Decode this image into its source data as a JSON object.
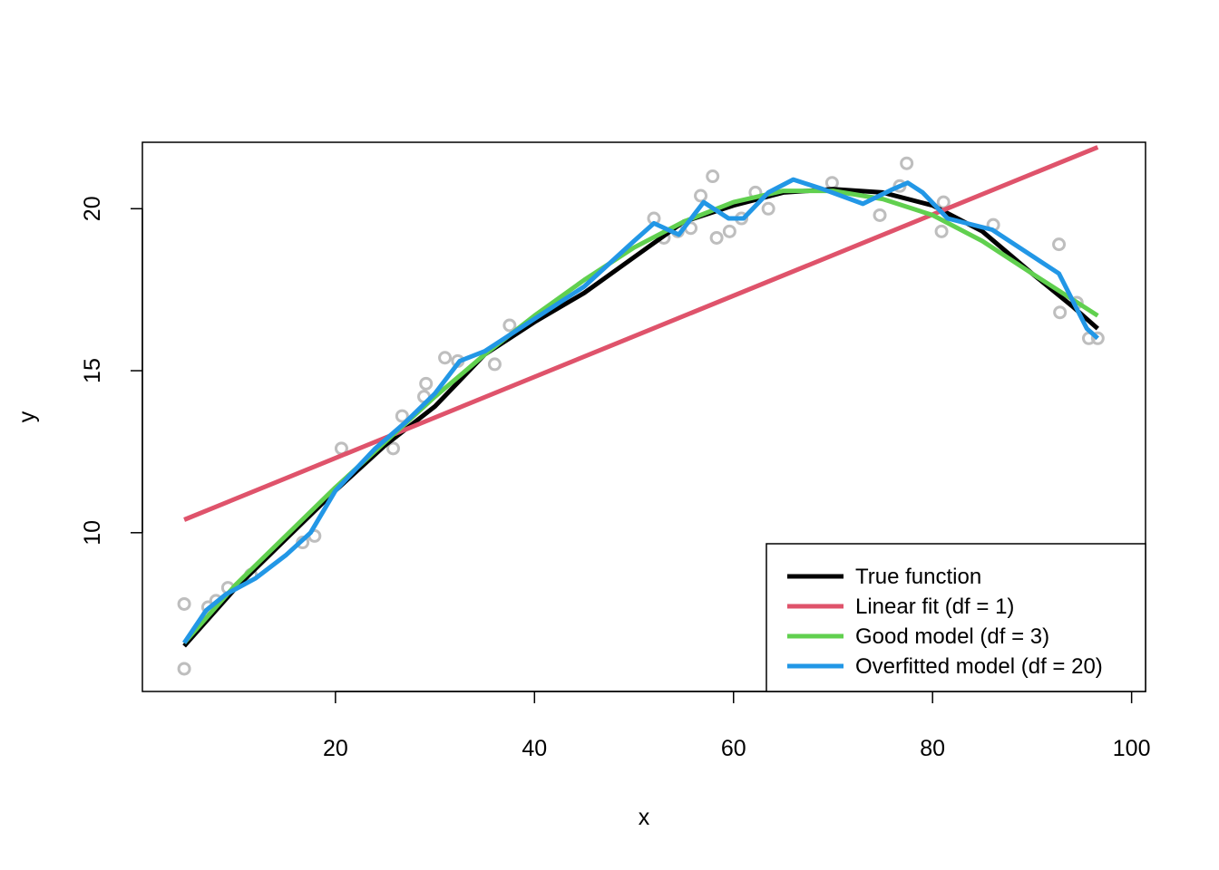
{
  "chart_data": {
    "type": "scatter",
    "title": "",
    "xlabel": "x",
    "ylabel": "y",
    "xlim": [
      0.6,
      101.4
    ],
    "ylim": [
      5.1,
      22.05
    ],
    "x_ticks": [
      20,
      40,
      60,
      80,
      100
    ],
    "y_ticks": [
      10,
      15,
      20
    ],
    "grid": false,
    "legend_position": "bottom-right",
    "points_color": "#bebebe",
    "points": [
      {
        "x": 4.8,
        "y": 7.8
      },
      {
        "x": 4.8,
        "y": 5.8
      },
      {
        "x": 7.2,
        "y": 7.7
      },
      {
        "x": 8.0,
        "y": 7.9
      },
      {
        "x": 9.2,
        "y": 8.3
      },
      {
        "x": 11.5,
        "y": 8.7
      },
      {
        "x": 16.7,
        "y": 9.7
      },
      {
        "x": 17.9,
        "y": 9.9
      },
      {
        "x": 20.6,
        "y": 12.6
      },
      {
        "x": 25.8,
        "y": 12.6
      },
      {
        "x": 26.7,
        "y": 13.6
      },
      {
        "x": 28.9,
        "y": 14.2
      },
      {
        "x": 29.1,
        "y": 14.6
      },
      {
        "x": 31.0,
        "y": 15.4
      },
      {
        "x": 32.3,
        "y": 15.3
      },
      {
        "x": 36.0,
        "y": 15.2
      },
      {
        "x": 37.5,
        "y": 16.4
      },
      {
        "x": 52.0,
        "y": 19.7
      },
      {
        "x": 53.0,
        "y": 19.1
      },
      {
        "x": 54.4,
        "y": 19.3
      },
      {
        "x": 55.7,
        "y": 19.4
      },
      {
        "x": 56.7,
        "y": 20.4
      },
      {
        "x": 57.9,
        "y": 21.0
      },
      {
        "x": 58.3,
        "y": 19.1
      },
      {
        "x": 59.6,
        "y": 19.3
      },
      {
        "x": 60.8,
        "y": 19.7
      },
      {
        "x": 62.2,
        "y": 20.5
      },
      {
        "x": 63.5,
        "y": 20.0
      },
      {
        "x": 69.9,
        "y": 20.8
      },
      {
        "x": 74.7,
        "y": 19.8
      },
      {
        "x": 76.7,
        "y": 20.7
      },
      {
        "x": 77.4,
        "y": 21.4
      },
      {
        "x": 80.9,
        "y": 19.3
      },
      {
        "x": 81.1,
        "y": 20.2
      },
      {
        "x": 86.1,
        "y": 19.5
      },
      {
        "x": 92.7,
        "y": 18.9
      },
      {
        "x": 92.8,
        "y": 16.8
      },
      {
        "x": 94.5,
        "y": 17.1
      },
      {
        "x": 95.7,
        "y": 16.0
      },
      {
        "x": 96.6,
        "y": 16.0
      }
    ],
    "series": [
      {
        "name": "True function",
        "color": "#000000",
        "points": [
          {
            "x": 4.8,
            "y": 6.5
          },
          {
            "x": 10.0,
            "y": 8.3
          },
          {
            "x": 15.0,
            "y": 9.8
          },
          {
            "x": 20.0,
            "y": 11.3
          },
          {
            "x": 25.0,
            "y": 12.7
          },
          {
            "x": 30.0,
            "y": 13.9
          },
          {
            "x": 35.0,
            "y": 15.5
          },
          {
            "x": 40.0,
            "y": 16.5
          },
          {
            "x": 45.0,
            "y": 17.4
          },
          {
            "x": 50.0,
            "y": 18.5
          },
          {
            "x": 55.0,
            "y": 19.6
          },
          {
            "x": 60.0,
            "y": 20.1
          },
          {
            "x": 65.0,
            "y": 20.5
          },
          {
            "x": 70.0,
            "y": 20.6
          },
          {
            "x": 75.0,
            "y": 20.5
          },
          {
            "x": 80.0,
            "y": 20.1
          },
          {
            "x": 85.0,
            "y": 19.3
          },
          {
            "x": 90.0,
            "y": 18.0
          },
          {
            "x": 94.0,
            "y": 17.0
          },
          {
            "x": 96.6,
            "y": 16.3
          }
        ]
      },
      {
        "name": "Linear fit (df = 1)",
        "color": "#df536b",
        "points": [
          {
            "x": 4.8,
            "y": 10.4
          },
          {
            "x": 96.6,
            "y": 21.9
          }
        ]
      },
      {
        "name": "Good model (df = 3)",
        "color": "#61d04f",
        "points": [
          {
            "x": 4.8,
            "y": 6.6
          },
          {
            "x": 10.0,
            "y": 8.4
          },
          {
            "x": 15.0,
            "y": 9.9
          },
          {
            "x": 20.0,
            "y": 11.4
          },
          {
            "x": 25.0,
            "y": 12.8
          },
          {
            "x": 30.0,
            "y": 14.2
          },
          {
            "x": 35.0,
            "y": 15.5
          },
          {
            "x": 40.0,
            "y": 16.7
          },
          {
            "x": 45.0,
            "y": 17.8
          },
          {
            "x": 50.0,
            "y": 18.8
          },
          {
            "x": 55.0,
            "y": 19.6
          },
          {
            "x": 60.0,
            "y": 20.2
          },
          {
            "x": 65.0,
            "y": 20.55
          },
          {
            "x": 70.0,
            "y": 20.55
          },
          {
            "x": 75.0,
            "y": 20.3
          },
          {
            "x": 80.0,
            "y": 19.8
          },
          {
            "x": 85.0,
            "y": 19.0
          },
          {
            "x": 90.0,
            "y": 18.0
          },
          {
            "x": 96.6,
            "y": 16.7
          }
        ]
      },
      {
        "name": "Overfitted model (df = 20)",
        "color": "#2297e6",
        "points": [
          {
            "x": 4.8,
            "y": 6.6
          },
          {
            "x": 7.0,
            "y": 7.6
          },
          {
            "x": 9.0,
            "y": 8.1
          },
          {
            "x": 12.0,
            "y": 8.6
          },
          {
            "x": 15.0,
            "y": 9.3
          },
          {
            "x": 17.5,
            "y": 10.0
          },
          {
            "x": 20.0,
            "y": 11.3
          },
          {
            "x": 24.0,
            "y": 12.6
          },
          {
            "x": 27.0,
            "y": 13.4
          },
          {
            "x": 30.0,
            "y": 14.3
          },
          {
            "x": 32.5,
            "y": 15.3
          },
          {
            "x": 35.0,
            "y": 15.6
          },
          {
            "x": 40.0,
            "y": 16.6
          },
          {
            "x": 45.0,
            "y": 17.6
          },
          {
            "x": 50.0,
            "y": 19.0
          },
          {
            "x": 52.0,
            "y": 19.55
          },
          {
            "x": 54.5,
            "y": 19.2
          },
          {
            "x": 57.0,
            "y": 20.2
          },
          {
            "x": 59.5,
            "y": 19.7
          },
          {
            "x": 61.0,
            "y": 19.7
          },
          {
            "x": 63.5,
            "y": 20.5
          },
          {
            "x": 66.0,
            "y": 20.9
          },
          {
            "x": 69.0,
            "y": 20.6
          },
          {
            "x": 73.0,
            "y": 20.15
          },
          {
            "x": 76.0,
            "y": 20.6
          },
          {
            "x": 77.5,
            "y": 20.8
          },
          {
            "x": 79.0,
            "y": 20.5
          },
          {
            "x": 81.5,
            "y": 19.7
          },
          {
            "x": 86.0,
            "y": 19.35
          },
          {
            "x": 92.7,
            "y": 18.0
          },
          {
            "x": 95.5,
            "y": 16.3
          },
          {
            "x": 96.6,
            "y": 16.0
          }
        ]
      }
    ]
  }
}
